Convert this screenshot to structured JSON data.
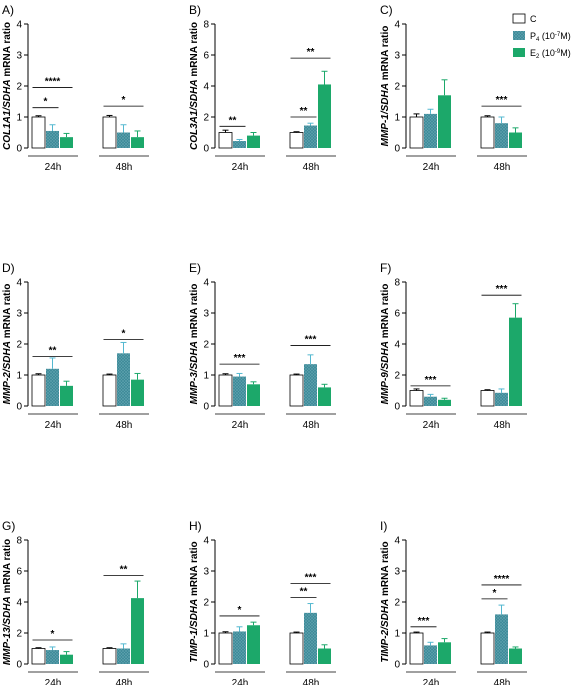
{
  "legend": {
    "items": [
      {
        "name": "C",
        "sup": "",
        "suffix": "",
        "color": "#ffffff"
      },
      {
        "name": "P",
        "sub": "4",
        "paren": " (10",
        "sup": "-7",
        "suffix": "M)",
        "color": "#3a8896"
      },
      {
        "name": "E",
        "sub": "2",
        "paren": " (10",
        "sup": "-9",
        "suffix": "M)",
        "color": "#1ca86a"
      }
    ]
  },
  "colors": {
    "control": "#ffffff",
    "p4": "#3a8896",
    "e2": "#1ca86a",
    "error_p4": "#54b8d0",
    "error_e2": "#1ca86a",
    "axis": "#000000"
  },
  "chart_data": [
    {
      "panel": "A)",
      "type": "bar",
      "ylabel_gene": "COL1A1/SDHA",
      "ylabel_suffix": " mRNA ratio",
      "ylim": [
        0,
        4
      ],
      "yticks": [
        0,
        1,
        2,
        3,
        4
      ],
      "categories": [
        "24h",
        "48h"
      ],
      "series": [
        {
          "name": "C",
          "values": [
            1.0,
            1.0
          ],
          "errors": [
            0.04,
            0.05
          ]
        },
        {
          "name": "P4",
          "values": [
            0.55,
            0.5
          ],
          "errors": [
            0.2,
            0.25
          ]
        },
        {
          "name": "E2",
          "values": [
            0.35,
            0.35
          ],
          "errors": [
            0.12,
            0.2
          ]
        }
      ],
      "significance": [
        {
          "group": 0,
          "from": 0,
          "to": 1,
          "label": "*",
          "y": 1.3
        },
        {
          "group": 0,
          "from": 0,
          "to": 2,
          "label": "****",
          "y": 1.95
        },
        {
          "group": 1,
          "from": 0,
          "to": 2,
          "label": "*",
          "y": 1.35
        }
      ]
    },
    {
      "panel": "B)",
      "type": "bar",
      "ylabel_gene": "COL3A1/SDHA",
      "ylabel_suffix": " mRNA ratio",
      "ylim": [
        0,
        8
      ],
      "yticks": [
        0,
        2,
        4,
        6,
        8
      ],
      "categories": [
        "24h",
        "48h"
      ],
      "series": [
        {
          "name": "C",
          "values": [
            1.0,
            1.0
          ],
          "errors": [
            0.15,
            0.05
          ]
        },
        {
          "name": "P4",
          "values": [
            0.45,
            1.45
          ],
          "errors": [
            0.1,
            0.15
          ]
        },
        {
          "name": "E2",
          "values": [
            0.8,
            4.1
          ],
          "errors": [
            0.2,
            0.85
          ]
        }
      ],
      "significance": [
        {
          "group": 0,
          "from": 0,
          "to": 1,
          "label": "**",
          "y": 1.4
        },
        {
          "group": 1,
          "from": 0,
          "to": 1,
          "label": "**",
          "y": 2.0
        },
        {
          "group": 1,
          "from": 0,
          "to": 2,
          "label": "**",
          "y": 5.8
        }
      ]
    },
    {
      "panel": "C)",
      "type": "bar",
      "ylabel_gene": "MMP-1/SDHA",
      "ylabel_suffix": " mRNA ratio",
      "ylim": [
        0,
        4
      ],
      "yticks": [
        0,
        1,
        2,
        3,
        4
      ],
      "categories": [
        "24h",
        "48h"
      ],
      "series": [
        {
          "name": "C",
          "values": [
            1.0,
            1.0
          ],
          "errors": [
            0.1,
            0.04
          ]
        },
        {
          "name": "P4",
          "values": [
            1.1,
            0.8
          ],
          "errors": [
            0.15,
            0.2
          ]
        },
        {
          "name": "E2",
          "values": [
            1.7,
            0.5
          ],
          "errors": [
            0.5,
            0.15
          ]
        }
      ],
      "significance": [
        {
          "group": 1,
          "from": 0,
          "to": 2,
          "label": "***",
          "y": 1.35
        }
      ]
    },
    {
      "panel": "D)",
      "type": "bar",
      "ylabel_gene": "MMP-2/SDHA",
      "ylabel_suffix": " mRNA ratio",
      "ylim": [
        0,
        4
      ],
      "yticks": [
        0,
        1,
        2,
        3,
        4
      ],
      "categories": [
        "24h",
        "48h"
      ],
      "series": [
        {
          "name": "C",
          "values": [
            1.0,
            1.0
          ],
          "errors": [
            0.04,
            0.03
          ]
        },
        {
          "name": "P4",
          "values": [
            1.2,
            1.7
          ],
          "errors": [
            0.35,
            0.35
          ]
        },
        {
          "name": "E2",
          "values": [
            0.65,
            0.85
          ],
          "errors": [
            0.15,
            0.2
          ]
        }
      ],
      "significance": [
        {
          "group": 0,
          "from": 0,
          "to": 2,
          "label": "**",
          "y": 1.6
        },
        {
          "group": 1,
          "from": 0,
          "to": 2,
          "label": "*",
          "y": 2.15
        }
      ]
    },
    {
      "panel": "E)",
      "type": "bar",
      "ylabel_gene": "MMP-3/SDHA",
      "ylabel_suffix": " mRNA ratio",
      "ylim": [
        0,
        4
      ],
      "yticks": [
        0,
        1,
        2,
        3,
        4
      ],
      "categories": [
        "24h",
        "48h"
      ],
      "series": [
        {
          "name": "C",
          "values": [
            1.0,
            1.0
          ],
          "errors": [
            0.04,
            0.03
          ]
        },
        {
          "name": "P4",
          "values": [
            0.95,
            1.35
          ],
          "errors": [
            0.1,
            0.3
          ]
        },
        {
          "name": "E2",
          "values": [
            0.7,
            0.6
          ],
          "errors": [
            0.08,
            0.1
          ]
        }
      ],
      "significance": [
        {
          "group": 0,
          "from": 0,
          "to": 2,
          "label": "***",
          "y": 1.35
        },
        {
          "group": 1,
          "from": 0,
          "to": 2,
          "label": "***",
          "y": 1.95
        }
      ]
    },
    {
      "panel": "F)",
      "type": "bar",
      "ylabel_gene": "MMP-9/SDHA",
      "ylabel_suffix": " mRNA ratio",
      "ylim": [
        0,
        8
      ],
      "yticks": [
        0,
        2,
        4,
        6,
        8
      ],
      "categories": [
        "24h",
        "48h"
      ],
      "series": [
        {
          "name": "C",
          "values": [
            1.0,
            1.0
          ],
          "errors": [
            0.1,
            0.05
          ]
        },
        {
          "name": "P4",
          "values": [
            0.6,
            0.85
          ],
          "errors": [
            0.15,
            0.25
          ]
        },
        {
          "name": "E2",
          "values": [
            0.4,
            5.7
          ],
          "errors": [
            0.1,
            0.9
          ]
        }
      ],
      "significance": [
        {
          "group": 0,
          "from": 0,
          "to": 2,
          "label": "***",
          "y": 1.3
        },
        {
          "group": 1,
          "from": 0,
          "to": 2,
          "label": "***",
          "y": 7.15
        }
      ]
    },
    {
      "panel": "G)",
      "type": "bar",
      "ylabel_gene": "MMP-13/SDHA",
      "ylabel_suffix": " mRNA ratio",
      "ylim": [
        0,
        8
      ],
      "yticks": [
        0,
        2,
        4,
        6,
        8
      ],
      "categories": [
        "24h",
        "48h"
      ],
      "series": [
        {
          "name": "C",
          "values": [
            1.0,
            1.0
          ],
          "errors": [
            0.05,
            0.05
          ]
        },
        {
          "name": "P4",
          "values": [
            0.9,
            1.0
          ],
          "errors": [
            0.2,
            0.3
          ]
        },
        {
          "name": "E2",
          "values": [
            0.6,
            4.25
          ],
          "errors": [
            0.2,
            1.1
          ]
        }
      ],
      "significance": [
        {
          "group": 0,
          "from": 0,
          "to": 2,
          "label": "*",
          "y": 1.55
        },
        {
          "group": 1,
          "from": 0,
          "to": 2,
          "label": "**",
          "y": 5.7
        }
      ]
    },
    {
      "panel": "H)",
      "type": "bar",
      "ylabel_gene": "TIMP-1/SDHA",
      "ylabel_suffix": " mRNA ratio",
      "ylim": [
        0,
        4
      ],
      "yticks": [
        0,
        1,
        2,
        3,
        4
      ],
      "categories": [
        "24h",
        "48h"
      ],
      "series": [
        {
          "name": "C",
          "values": [
            1.0,
            1.0
          ],
          "errors": [
            0.04,
            0.03
          ]
        },
        {
          "name": "P4",
          "values": [
            1.05,
            1.65
          ],
          "errors": [
            0.15,
            0.3
          ]
        },
        {
          "name": "E2",
          "values": [
            1.25,
            0.5
          ],
          "errors": [
            0.1,
            0.12
          ]
        }
      ],
      "significance": [
        {
          "group": 0,
          "from": 0,
          "to": 2,
          "label": "*",
          "y": 1.55
        },
        {
          "group": 1,
          "from": 0,
          "to": 1,
          "label": "**",
          "y": 2.15
        },
        {
          "group": 1,
          "from": 0,
          "to": 2,
          "label": "***",
          "y": 2.6
        }
      ]
    },
    {
      "panel": "I)",
      "type": "bar",
      "ylabel_gene": "TIMP-2/SDHA",
      "ylabel_suffix": " mRNA ratio",
      "ylim": [
        0,
        4
      ],
      "yticks": [
        0,
        1,
        2,
        3,
        4
      ],
      "categories": [
        "24h",
        "48h"
      ],
      "series": [
        {
          "name": "C",
          "values": [
            1.0,
            1.0
          ],
          "errors": [
            0.03,
            0.03
          ]
        },
        {
          "name": "P4",
          "values": [
            0.6,
            1.6
          ],
          "errors": [
            0.1,
            0.3
          ]
        },
        {
          "name": "E2",
          "values": [
            0.7,
            0.5
          ],
          "errors": [
            0.12,
            0.05
          ]
        }
      ],
      "significance": [
        {
          "group": 0,
          "from": 0,
          "to": 1,
          "label": "***",
          "y": 1.2
        },
        {
          "group": 1,
          "from": 0,
          "to": 1,
          "label": "*",
          "y": 2.1
        },
        {
          "group": 1,
          "from": 0,
          "to": 2,
          "label": "****",
          "y": 2.55
        }
      ]
    }
  ]
}
